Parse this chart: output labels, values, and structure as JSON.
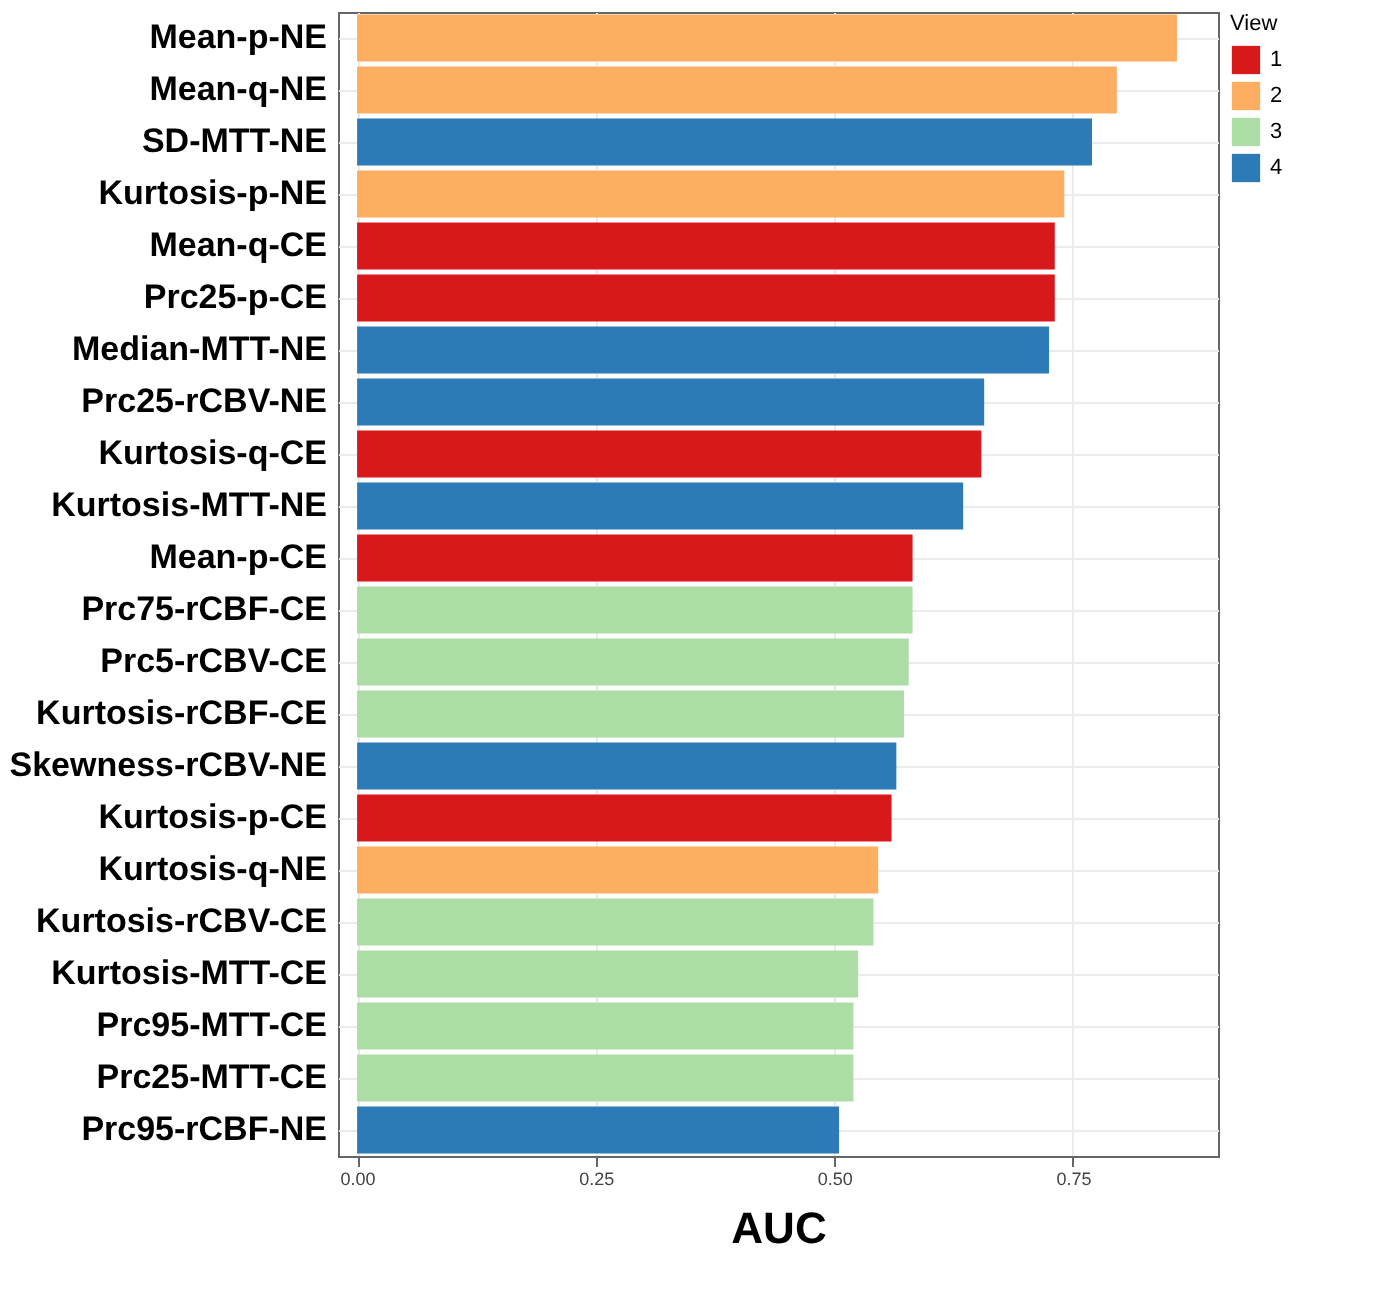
{
  "chart_data": {
    "type": "bar",
    "orientation": "horizontal",
    "xlabel": "AUC",
    "legend_title": "View",
    "legend": "right",
    "grid": true,
    "categories": [
      "Mean-p-NE",
      "Mean-q-NE",
      "SD-MTT-NE",
      "Kurtosis-p-NE",
      "Mean-q-CE",
      "Prc25-p-CE",
      "Median-MTT-NE",
      "Prc25-rCBV-NE",
      "Kurtosis-q-CE",
      "Kurtosis-MTT-NE",
      "Mean-p-CE",
      "Prc75-rCBF-CE",
      "Prc5-rCBV-CE",
      "Kurtosis-rCBF-CE",
      "Skewness-rCBV-NE",
      "Kurtosis-p-CE",
      "Kurtosis-q-NE",
      "Kurtosis-rCBV-CE",
      "Kurtosis-MTT-CE",
      "Prc95-MTT-CE",
      "Prc25-MTT-CE",
      "Prc95-rCBF-NE"
    ],
    "series": [
      {
        "name": "1",
        "color": "#d7191c",
        "values": [
          null,
          null,
          null,
          null,
          0.731,
          0.731,
          null,
          null,
          0.654,
          null,
          0.582,
          null,
          null,
          null,
          null,
          0.56,
          null,
          null,
          null,
          null,
          null,
          null
        ]
      },
      {
        "name": "2",
        "color": "#fdae61",
        "values": [
          0.859,
          0.796,
          null,
          0.741,
          null,
          null,
          null,
          null,
          null,
          null,
          null,
          null,
          null,
          null,
          null,
          null,
          0.546,
          null,
          null,
          null,
          null,
          null
        ]
      },
      {
        "name": "3",
        "color": "#abdda4",
        "values": [
          null,
          null,
          null,
          null,
          null,
          null,
          null,
          null,
          null,
          null,
          null,
          0.582,
          0.578,
          0.573,
          null,
          null,
          null,
          0.541,
          0.525,
          0.52,
          0.52,
          null
        ]
      },
      {
        "name": "4",
        "color": "#2c7bb6",
        "values": [
          null,
          null,
          0.77,
          null,
          null,
          null,
          0.725,
          0.657,
          null,
          0.635,
          null,
          null,
          null,
          null,
          0.565,
          null,
          null,
          null,
          null,
          null,
          null,
          0.505
        ]
      }
    ],
    "xlim": [
      -0.02,
      0.902
    ],
    "xticks": [
      {
        "value": 0,
        "label": "0.00"
      },
      {
        "value": 0.25,
        "label": "0.25"
      },
      {
        "value": 0.5,
        "label": "0.50"
      },
      {
        "value": 0.75,
        "label": "0.75"
      }
    ]
  }
}
